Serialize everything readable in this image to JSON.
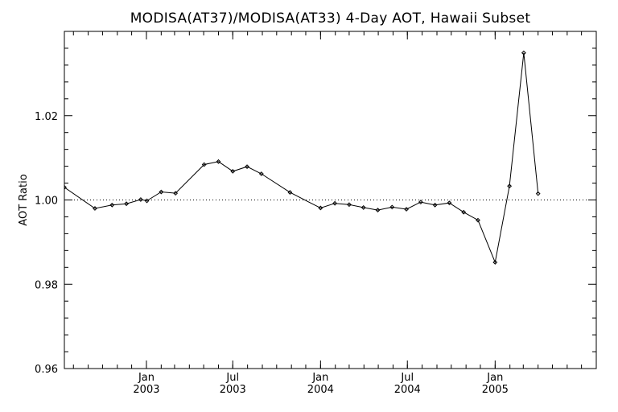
{
  "chart_data": {
    "type": "line",
    "title": "MODISA(AT37)/MODISA(AT33) 4-Day AOT, Hawaii Subset",
    "xlabel": "",
    "ylabel": "AOT Ratio",
    "xlim": [
      "2002-07-13",
      "2005-08-01"
    ],
    "ylim": [
      0.96,
      1.04
    ],
    "yticks": [
      {
        "value": 0.96,
        "label": "0.96"
      },
      {
        "value": 0.98,
        "label": "0.98"
      },
      {
        "value": 1.0,
        "label": "1.00"
      },
      {
        "value": 1.02,
        "label": "1.02"
      }
    ],
    "xticks": [
      {
        "date": "2003-01-01",
        "label1": "Jan",
        "label2": "2003"
      },
      {
        "date": "2003-07-01",
        "label1": "Jul",
        "label2": "2003"
      },
      {
        "date": "2004-01-01",
        "label1": "Jan",
        "label2": "2004"
      },
      {
        "date": "2004-07-01",
        "label1": "Jul",
        "label2": "2004"
      },
      {
        "date": "2005-01-01",
        "label1": "Jan",
        "label2": "2005"
      }
    ],
    "reference_line": {
      "y": 1.0,
      "style": "dotted"
    },
    "grid": false,
    "series": [
      {
        "x": [
          "2002-07-13",
          "2002-09-15",
          "2002-10-21",
          "2002-11-20",
          "2002-12-20",
          "2003-01-02",
          "2003-02-01",
          "2003-03-03",
          "2003-05-02",
          "2003-06-01",
          "2003-07-01",
          "2003-07-31",
          "2003-08-30",
          "2003-10-29",
          "2004-01-01",
          "2004-01-31",
          "2004-03-01",
          "2004-03-31",
          "2004-04-30",
          "2004-05-30",
          "2004-06-29",
          "2004-07-29",
          "2004-08-28",
          "2004-09-27",
          "2004-10-27",
          "2004-11-26",
          "2005-01-01",
          "2005-01-31",
          "2005-03-02",
          "2005-04-01"
        ],
        "y": [
          1.003,
          0.998,
          0.9988,
          0.9991,
          1.0001,
          0.9998,
          1.0019,
          1.0016,
          1.0084,
          1.0091,
          1.0068,
          1.0079,
          1.0062,
          1.0018,
          0.9981,
          0.9992,
          0.9989,
          0.9982,
          0.9976,
          0.9983,
          0.9978,
          0.9995,
          0.9988,
          0.9993,
          0.9971,
          0.9952,
          0.9852,
          1.0033,
          1.0349,
          1.0015
        ],
        "marker": "diamond",
        "color": "#000000"
      }
    ]
  }
}
